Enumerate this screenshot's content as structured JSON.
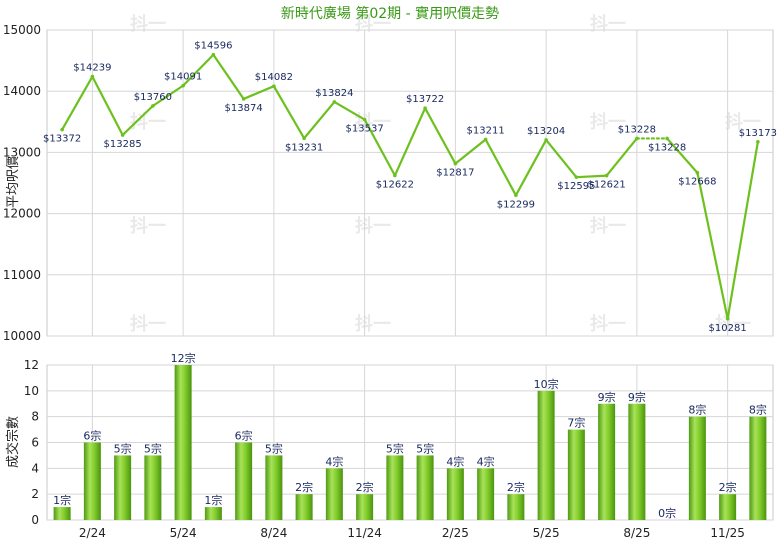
{
  "chart_data": [
    {
      "type": "line",
      "title": "新時代廣場 第02期 - 實用呎價走勢",
      "ylabel": "平均呎價",
      "ylim": [
        10000,
        15000
      ],
      "yticks": [
        10000,
        11000,
        12000,
        13000,
        14000,
        15000
      ],
      "grid": true,
      "color": "#6cc11e",
      "series": [
        {
          "values": [
            13372,
            14239,
            13285,
            13760,
            14091,
            14596,
            13874,
            14082,
            13231,
            13824,
            13537,
            12622,
            13722,
            12817,
            13211,
            12299,
            13204,
            12595,
            12621,
            13228,
            13228,
            12668,
            10281,
            13173
          ],
          "labels": [
            "$13372",
            "$14239",
            "$13285",
            "$13760",
            "$14091",
            "$14596",
            "$13874",
            "$14082",
            "$13231",
            "$13824",
            "$13537",
            "$12622",
            "$13722",
            "$12817",
            "$13211",
            "$12299",
            "$13204",
            "$12595",
            "$12621",
            "$13228",
            "$13228",
            "$12668",
            "$10281",
            "$13173"
          ]
        }
      ]
    },
    {
      "type": "bar",
      "ylabel": "成交宗數",
      "ylim": [
        0,
        12
      ],
      "yticks": [
        0,
        2,
        4,
        6,
        8,
        10,
        12
      ],
      "x_tick_labels": [
        "2/24",
        "5/24",
        "8/24",
        "11/24",
        "2/25",
        "5/25",
        "8/25",
        "11/25"
      ],
      "grid": true,
      "color": "#7ccb26",
      "values": [
        1,
        6,
        5,
        5,
        12,
        1,
        6,
        5,
        2,
        4,
        2,
        5,
        5,
        4,
        4,
        2,
        10,
        7,
        9,
        9,
        0,
        8,
        2,
        8
      ],
      "labels": [
        "1宗",
        "6宗",
        "5宗",
        "5宗",
        "12宗",
        "1宗",
        "6宗",
        "5宗",
        "2宗",
        "4宗",
        "2宗",
        "5宗",
        "5宗",
        "4宗",
        "4宗",
        "2宗",
        "10宗",
        "7宗",
        "9宗",
        "9宗",
        "0宗",
        "8宗",
        "2宗",
        "8宗"
      ]
    }
  ],
  "watermark": "抖一"
}
